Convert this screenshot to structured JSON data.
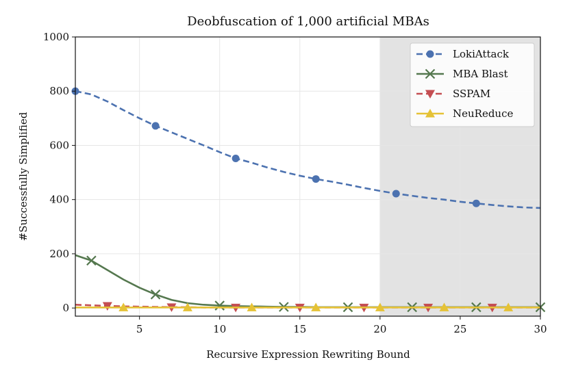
{
  "chart_data": {
    "type": "line",
    "title": "Deobfuscation of 1,000 artificial MBAs",
    "xlabel": "Recursive Expression Rewriting Bound",
    "ylabel": "#Successfully Simplified",
    "xlim": [
      1,
      30
    ],
    "ylim": [
      -30,
      1000
    ],
    "xticks": [
      5,
      10,
      15,
      20,
      25,
      30
    ],
    "yticks": [
      0,
      200,
      400,
      600,
      800,
      1000
    ],
    "grid": true,
    "legend_position": "top-right",
    "shaded_region": {
      "x_from": 20,
      "x_to": 30,
      "color": "#e3e3e3"
    },
    "series": [
      {
        "name": "LokiAttack",
        "color": "#4c72b0",
        "line": "dashed",
        "marker": "circle",
        "x": [
          1,
          2,
          3,
          4,
          5,
          6,
          7,
          8,
          9,
          10,
          11,
          12,
          13,
          14,
          15,
          16,
          17,
          18,
          19,
          20,
          21,
          22,
          23,
          24,
          25,
          26,
          27,
          28,
          29,
          30
        ],
        "y": [
          800,
          788,
          762,
          730,
          700,
          672,
          648,
          624,
          600,
          575,
          552,
          536,
          518,
          502,
          488,
          476,
          466,
          455,
          443,
          432,
          422,
          414,
          406,
          400,
          392,
          386,
          380,
          375,
          371,
          369
        ],
        "marker_x": [
          1,
          6,
          11,
          16,
          21,
          26
        ]
      },
      {
        "name": "MBA Blast",
        "color": "#55784f",
        "line": "solid",
        "marker": "x",
        "x": [
          1,
          2,
          3,
          4,
          5,
          6,
          7,
          8,
          9,
          10,
          11,
          12,
          13,
          14,
          15,
          16,
          17,
          18,
          19,
          20,
          21,
          22,
          23,
          24,
          25,
          26,
          27,
          28,
          29,
          30
        ],
        "y": [
          195,
          175,
          140,
          105,
          75,
          50,
          30,
          18,
          12,
          9,
          7,
          6,
          5,
          4,
          4,
          3,
          3,
          3,
          3,
          3,
          3,
          3,
          3,
          3,
          3,
          3,
          3,
          3,
          3,
          3
        ],
        "marker_x": [
          2,
          6,
          10,
          14,
          18,
          22,
          26,
          30
        ]
      },
      {
        "name": "SSPAM",
        "color": "#c44e52",
        "line": "dashed",
        "marker": "triangle-down",
        "x": [
          1,
          2,
          3,
          4,
          5,
          6,
          7,
          8,
          9,
          10,
          11,
          12,
          13,
          14,
          15,
          16,
          17,
          18,
          19,
          20,
          21,
          22,
          23,
          24,
          25,
          26,
          27,
          28,
          29,
          30
        ],
        "y": [
          12,
          10,
          8,
          6,
          5,
          4,
          3,
          3,
          2,
          2,
          2,
          2,
          2,
          2,
          2,
          2,
          2,
          2,
          2,
          2,
          2,
          2,
          2,
          2,
          2,
          2,
          2,
          2,
          2,
          2
        ],
        "marker_x": [
          3,
          7,
          11,
          15,
          19,
          23,
          27
        ]
      },
      {
        "name": "NeuReduce",
        "color": "#e5c236",
        "line": "solid",
        "marker": "triangle-up",
        "x": [
          1,
          2,
          3,
          4,
          5,
          6,
          7,
          8,
          9,
          10,
          11,
          12,
          13,
          14,
          15,
          16,
          17,
          18,
          19,
          20,
          21,
          22,
          23,
          24,
          25,
          26,
          27,
          28,
          29,
          30
        ],
        "y": [
          2,
          2,
          2,
          2,
          2,
          2,
          2,
          2,
          2,
          2,
          2,
          2,
          2,
          2,
          2,
          2,
          2,
          2,
          2,
          2,
          2,
          2,
          2,
          2,
          2,
          2,
          2,
          2,
          2,
          2
        ],
        "marker_x": [
          4,
          8,
          12,
          16,
          20,
          24,
          28
        ]
      }
    ]
  }
}
